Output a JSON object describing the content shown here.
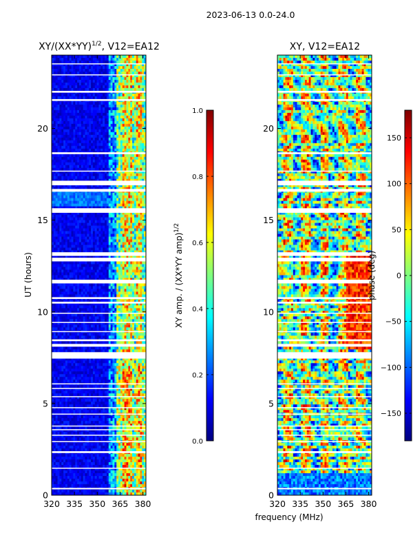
{
  "page_title": "2023-06-13 0.0-24.0",
  "colors": {
    "jet": [
      "#00007f",
      "#0000ff",
      "#007fff",
      "#00ffff",
      "#7fff7f",
      "#ffff00",
      "#ff7f00",
      "#ff0000",
      "#7f0000"
    ],
    "axis": "#000000",
    "gap": "#ffffff"
  },
  "chart_data": [
    {
      "type": "heatmap",
      "title_prefix": "XY/(XX*YY)",
      "title_sup": "1/2",
      "title_suffix": ", V12=EA12",
      "xlabel": "",
      "ylabel": "UT (hours)",
      "xlim": [
        320,
        382
      ],
      "ylim": [
        0,
        24
      ],
      "xticks": [
        320,
        335,
        350,
        365,
        380
      ],
      "yticks": [
        0,
        5,
        10,
        15,
        20
      ],
      "colorbar": {
        "label_prefix": "XY amp. / (XX*YY amp)",
        "label_sup": "1/2",
        "range": [
          0.0,
          1.0
        ],
        "ticks": [
          0.0,
          0.2,
          0.4,
          0.6,
          0.8,
          1.0
        ],
        "tick_labels": [
          "0.0",
          "0.2",
          "0.4",
          "0.6",
          "0.8",
          "1.0"
        ]
      }
    },
    {
      "type": "heatmap",
      "title_prefix": "XY, V12=EA12",
      "title_sup": "",
      "title_suffix": "",
      "xlabel": "frequency (MHz)",
      "ylabel": "",
      "xlim": [
        320,
        382
      ],
      "ylim": [
        0,
        24
      ],
      "xticks": [
        320,
        335,
        350,
        365,
        380
      ],
      "yticks": [
        0,
        5,
        10,
        15,
        20
      ],
      "colorbar": {
        "label_prefix": "phase (deg)",
        "label_sup": "",
        "range": [
          -180,
          180
        ],
        "ticks": [
          -150,
          -100,
          -50,
          0,
          50,
          100,
          150
        ],
        "tick_labels": [
          "−150",
          "−100",
          "−50",
          "0",
          "50",
          "100",
          "150"
        ]
      }
    }
  ],
  "gaps_ut_hours": [
    [
      0.32,
      0.4
    ],
    [
      1.45,
      1.5
    ],
    [
      2.3,
      2.4
    ],
    [
      2.9,
      2.95
    ],
    [
      3.25,
      3.3
    ],
    [
      3.55,
      3.6
    ],
    [
      3.75,
      3.8
    ],
    [
      4.4,
      4.45
    ],
    [
      4.75,
      4.8
    ],
    [
      5.35,
      5.4
    ],
    [
      5.8,
      5.85
    ],
    [
      6.05,
      6.1
    ],
    [
      7.45,
      7.8
    ],
    [
      8.1,
      8.25
    ],
    [
      8.4,
      8.5
    ],
    [
      8.9,
      8.95
    ],
    [
      9.4,
      9.45
    ],
    [
      9.9,
      9.95
    ],
    [
      10.45,
      10.55
    ],
    [
      10.7,
      10.8
    ],
    [
      11.55,
      11.75
    ],
    [
      12.75,
      12.95
    ],
    [
      13.05,
      13.25
    ],
    [
      15.4,
      15.65
    ],
    [
      16.55,
      16.7
    ],
    [
      16.9,
      17.15
    ],
    [
      17.65,
      17.7
    ],
    [
      18.6,
      18.7
    ],
    [
      21.5,
      21.6
    ],
    [
      21.95,
      22.05
    ],
    [
      22.9,
      22.95
    ],
    [
      23.5,
      23.55
    ]
  ]
}
